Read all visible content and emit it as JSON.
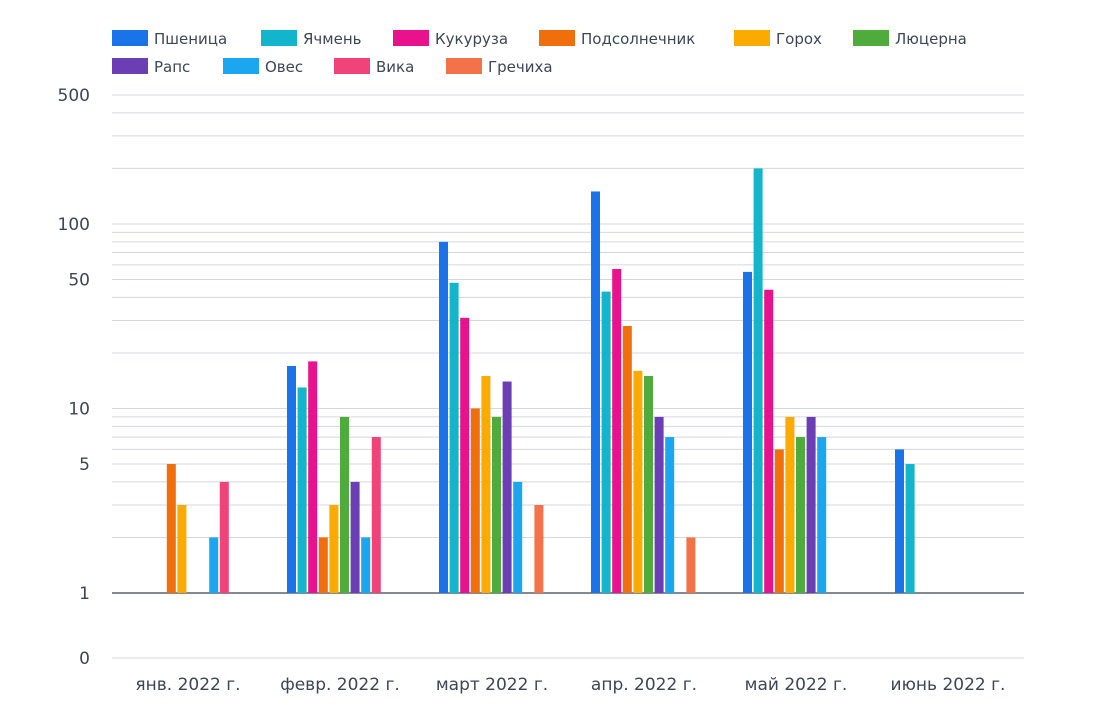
{
  "chart_data": {
    "type": "bar",
    "y_scale": "log",
    "grid": true,
    "legend_position": "top-left",
    "categories": [
      "янв. 2022 г.",
      "февр. 2022 г.",
      "март 2022 г.",
      "апр. 2022 г.",
      "май 2022 г.",
      "июнь 2022 г."
    ],
    "y_tick_labels": [
      {
        "value": 0,
        "label": "0"
      },
      {
        "value": 1,
        "label": "1"
      },
      {
        "value": 5,
        "label": "5"
      },
      {
        "value": 10,
        "label": "10"
      },
      {
        "value": 50,
        "label": "50"
      },
      {
        "value": 100,
        "label": "100"
      },
      {
        "value": 500,
        "label": "500"
      }
    ],
    "series": [
      {
        "name": "Пшеница",
        "color": "#1a73e8",
        "values": [
          0,
          17,
          80,
          150,
          55,
          6
        ]
      },
      {
        "name": "Ячмень",
        "color": "#12b5cb",
        "values": [
          0,
          13,
          48,
          43,
          200,
          5
        ]
      },
      {
        "name": "Кукуруза",
        "color": "#e8128c",
        "values": [
          0,
          18,
          31,
          57,
          44,
          0
        ]
      },
      {
        "name": "Подсолнечник",
        "color": "#f06e0c",
        "values": [
          5,
          2,
          10,
          28,
          6,
          0
        ]
      },
      {
        "name": "Горох",
        "color": "#fbab00",
        "values": [
          3,
          3,
          15,
          16,
          9,
          0
        ]
      },
      {
        "name": "Люцерна",
        "color": "#4fab3c",
        "values": [
          0,
          9,
          9,
          15,
          7,
          0
        ]
      },
      {
        "name": "Рапс",
        "color": "#6b3fb3",
        "values": [
          0,
          4,
          14,
          9,
          9,
          0
        ]
      },
      {
        "name": "Овес",
        "color": "#1aa7f0",
        "values": [
          2,
          2,
          4,
          7,
          7,
          0
        ]
      },
      {
        "name": "Вика",
        "color": "#f0437a",
        "values": [
          4,
          7,
          0,
          0,
          0,
          0
        ]
      },
      {
        "name": "Гречиха",
        "color": "#f4724a",
        "values": [
          0,
          0,
          3,
          2,
          0,
          0
        ]
      }
    ]
  }
}
